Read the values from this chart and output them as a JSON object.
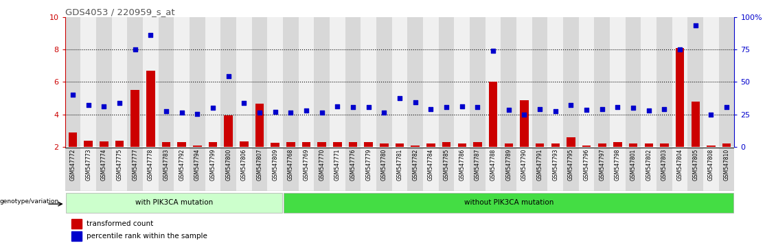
{
  "title": "GDS4053 / 220959_s_at",
  "samples": [
    "GSM547772",
    "GSM547773",
    "GSM547774",
    "GSM547775",
    "GSM547777",
    "GSM547778",
    "GSM547783",
    "GSM547792",
    "GSM547794",
    "GSM547799",
    "GSM547800",
    "GSM547806",
    "GSM547807",
    "GSM547809",
    "GSM547768",
    "GSM547769",
    "GSM547770",
    "GSM547771",
    "GSM547776",
    "GSM547779",
    "GSM547780",
    "GSM547781",
    "GSM547782",
    "GSM547784",
    "GSM547785",
    "GSM547786",
    "GSM547787",
    "GSM547788",
    "GSM547789",
    "GSM547790",
    "GSM547791",
    "GSM547793",
    "GSM547795",
    "GSM547796",
    "GSM547797",
    "GSM547798",
    "GSM547801",
    "GSM547802",
    "GSM547803",
    "GSM547804",
    "GSM547805",
    "GSM547808",
    "GSM547810"
  ],
  "bar_values": [
    2.9,
    2.4,
    2.35,
    2.4,
    5.5,
    6.7,
    2.3,
    2.3,
    2.1,
    2.3,
    3.95,
    2.35,
    4.65,
    2.25,
    2.3,
    2.3,
    2.3,
    2.3,
    2.3,
    2.3,
    2.2,
    2.2,
    2.1,
    2.2,
    2.3,
    2.2,
    2.3,
    6.0,
    2.2,
    4.9,
    2.2,
    2.2,
    2.6,
    2.1,
    2.2,
    2.3,
    2.2,
    2.2,
    2.2,
    8.1,
    4.8,
    2.1,
    2.2
  ],
  "blue_values": [
    5.2,
    4.6,
    4.5,
    4.7,
    8.0,
    8.9,
    4.2,
    4.1,
    4.05,
    4.4,
    6.35,
    4.7,
    4.1,
    4.15,
    4.1,
    4.25,
    4.1,
    4.5,
    4.45,
    4.45,
    4.1,
    5.0,
    4.75,
    4.35,
    4.45,
    4.5,
    4.45,
    7.9,
    4.3,
    4.0,
    4.35,
    4.2,
    4.6,
    4.3,
    4.35,
    4.45,
    4.4,
    4.25,
    4.35,
    8.0,
    9.5,
    4.0,
    4.45
  ],
  "group1_count": 14,
  "group2_count": 29,
  "group1_label": "with PIK3CA mutation",
  "group2_label": "without PIK3CA mutation",
  "genotype_label": "genotype/variation",
  "legend_bar_label": "transformed count",
  "legend_dot_label": "percentile rank within the sample",
  "ymin": 2,
  "ymax": 10,
  "yticks_left": [
    2,
    4,
    6,
    8,
    10
  ],
  "yticks_right": [
    0,
    25,
    50,
    75,
    100
  ],
  "hlines": [
    4,
    6,
    8
  ],
  "bar_color": "#cc0000",
  "dot_color": "#0000cc",
  "group1_color": "#ccffcc",
  "group2_color": "#44dd44",
  "col_even": "#d8d8d8",
  "col_odd": "#f0f0f0",
  "title_color": "#555555"
}
